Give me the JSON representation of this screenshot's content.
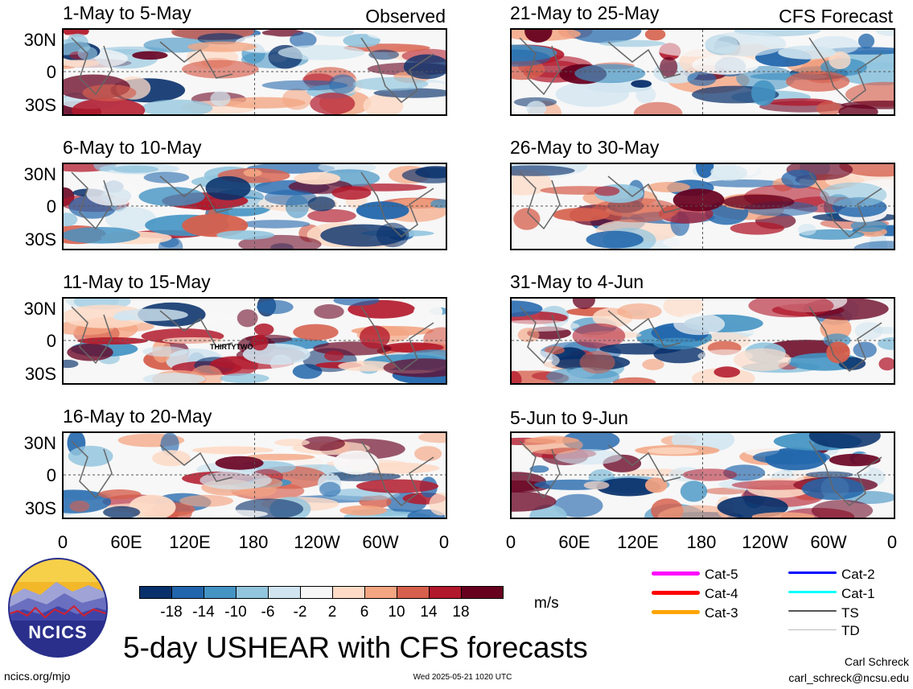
{
  "panels": {
    "obs": [
      {
        "title": "1-May to 5-May",
        "tag": "Observed"
      },
      {
        "title": "6-May to 10-May",
        "tag": ""
      },
      {
        "title": "11-May to 15-May",
        "tag": "",
        "annotation": "THIRTYTWO"
      },
      {
        "title": "16-May to 20-May",
        "tag": ""
      }
    ],
    "fcst": [
      {
        "title": "21-May to 25-May",
        "tag": "CFS Forecast"
      },
      {
        "title": "26-May to 30-May",
        "tag": ""
      },
      {
        "title": "31-May to 4-Jun",
        "tag": ""
      },
      {
        "title": "5-Jun to 9-Jun",
        "tag": ""
      }
    ]
  },
  "lat_labels": [
    "30N",
    "0",
    "30S"
  ],
  "lon_labels": [
    "0",
    "60E",
    "120E",
    "180",
    "120W",
    "60W",
    "0"
  ],
  "colorbar": {
    "colors": [
      "#08306b",
      "#2166ac",
      "#4393c3",
      "#92c5de",
      "#d1e5f0",
      "#f7f7f7",
      "#fddbc7",
      "#f4a582",
      "#d6604d",
      "#b2182b",
      "#67001f"
    ],
    "labels": [
      "-18",
      "-14",
      "-10",
      "-6",
      "-2",
      "2",
      "6",
      "10",
      "14",
      "18"
    ],
    "units": "m/s"
  },
  "legend": [
    {
      "label": "Cat-5",
      "color": "#ff00ff"
    },
    {
      "label": "Cat-4",
      "color": "#ff0000"
    },
    {
      "label": "Cat-3",
      "color": "#ffa500"
    },
    {
      "label": "Cat-2",
      "color": "#0000ff"
    },
    {
      "label": "Cat-1",
      "color": "#00ffff"
    },
    {
      "label": "TS",
      "color": "#555555"
    },
    {
      "label": "TD",
      "color": "#bbbbbb"
    }
  ],
  "logo_text": "NCICS",
  "main_title": "5-day USHEAR with CFS forecasts",
  "footer": {
    "left": "ncics.org/mjo",
    "center": "Wed 2025-05-21 1020 UTC",
    "author": "Carl Schreck",
    "email": "carl_schreck@ncsu.edu"
  }
}
